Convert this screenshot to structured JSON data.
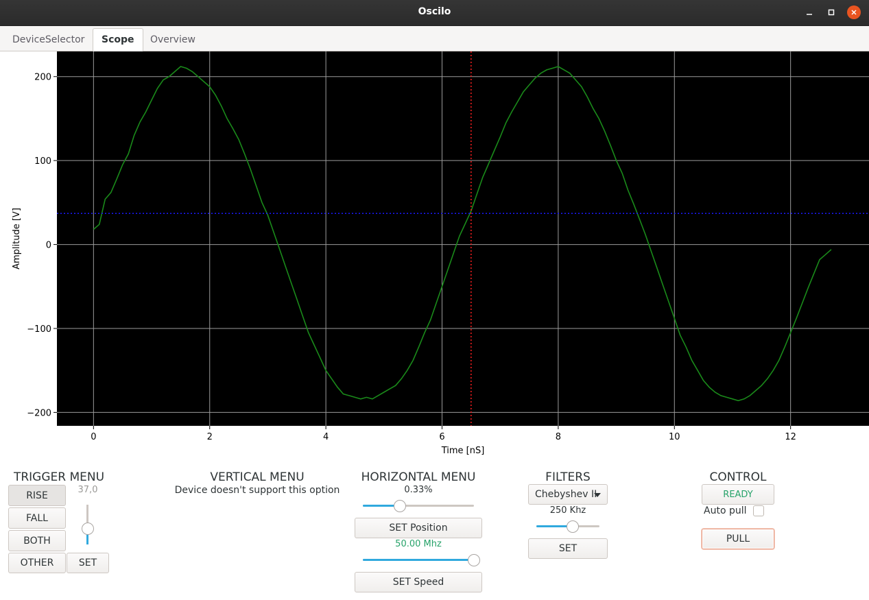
{
  "window": {
    "title": "Oscilo",
    "controls": {
      "minimize_icon": "minimize-icon",
      "maximize_icon": "maximize-icon",
      "close_icon": "close-icon"
    }
  },
  "tabs": [
    {
      "label": "DeviceSelector",
      "active": false
    },
    {
      "label": "Scope",
      "active": true
    },
    {
      "label": "Overview",
      "active": false
    }
  ],
  "chart_data": {
    "type": "line",
    "xlabel": "Time [nS]",
    "ylabel": "Amplitude [V]",
    "xlim": [
      -0.63,
      13.35
    ],
    "ylim": [
      -216,
      230
    ],
    "xticks": [
      0,
      2,
      4,
      6,
      8,
      10,
      12
    ],
    "yticks": [
      -200,
      -100,
      0,
      100,
      200
    ],
    "grid": true,
    "background": "#000000",
    "trigger_time": 6.5,
    "trigger_level": 37,
    "series": [
      {
        "color": "#1a8a1a",
        "x": [
          0.0,
          0.1,
          0.2,
          0.3,
          0.4,
          0.5,
          0.6,
          0.7,
          0.8,
          0.9,
          1.0,
          1.1,
          1.2,
          1.3,
          1.4,
          1.5,
          1.6,
          1.7,
          1.8,
          1.9,
          2.0,
          2.1,
          2.2,
          2.3,
          2.4,
          2.5,
          2.6,
          2.7,
          2.8,
          2.9,
          3.0,
          3.1,
          3.2,
          3.3,
          3.4,
          3.5,
          3.6,
          3.7,
          3.8,
          3.9,
          4.0,
          4.1,
          4.2,
          4.3,
          4.4,
          4.5,
          4.6,
          4.7,
          4.8,
          4.9,
          5.0,
          5.1,
          5.2,
          5.3,
          5.4,
          5.5,
          5.6,
          5.7,
          5.8,
          5.9,
          6.0,
          6.1,
          6.2,
          6.3,
          6.4,
          6.5,
          6.6,
          6.7,
          6.8,
          6.9,
          7.0,
          7.1,
          7.2,
          7.3,
          7.4,
          7.5,
          7.6,
          7.7,
          7.8,
          7.9,
          8.0,
          8.1,
          8.2,
          8.3,
          8.4,
          8.5,
          8.6,
          8.7,
          8.8,
          8.9,
          9.0,
          9.1,
          9.2,
          9.3,
          9.4,
          9.5,
          9.6,
          9.7,
          9.8,
          9.9,
          10.0,
          10.1,
          10.2,
          10.3,
          10.4,
          10.5,
          10.6,
          10.7,
          10.8,
          10.9,
          11.0,
          11.1,
          11.2,
          11.3,
          11.4,
          11.5,
          11.6,
          11.7,
          11.8,
          11.9,
          12.0,
          12.1,
          12.2,
          12.3,
          12.4,
          12.5,
          12.6,
          12.7
        ],
        "y": [
          18,
          24,
          54,
          62,
          78,
          95,
          108,
          130,
          146,
          158,
          172,
          186,
          196,
          200,
          206,
          212,
          210,
          206,
          200,
          194,
          188,
          178,
          165,
          150,
          138,
          125,
          108,
          90,
          70,
          50,
          35,
          15,
          -5,
          -25,
          -45,
          -65,
          -85,
          -105,
          -120,
          -135,
          -150,
          -160,
          -170,
          -178,
          -180,
          -182,
          -184,
          -182,
          -184,
          -180,
          -176,
          -172,
          -168,
          -160,
          -150,
          -138,
          -122,
          -105,
          -90,
          -70,
          -50,
          -30,
          -10,
          10,
          25,
          40,
          60,
          80,
          96,
          112,
          128,
          145,
          158,
          170,
          182,
          190,
          198,
          204,
          208,
          210,
          212,
          208,
          204,
          196,
          188,
          176,
          162,
          150,
          135,
          118,
          100,
          85,
          65,
          48,
          30,
          12,
          -8,
          -28,
          -48,
          -68,
          -88,
          -108,
          -122,
          -138,
          -150,
          -162,
          -170,
          -176,
          -180,
          -182,
          -184,
          -186,
          -184,
          -180,
          -174,
          -168,
          -160,
          -150,
          -138,
          -122,
          -105,
          -88,
          -70,
          -52,
          -35,
          -18,
          -12,
          -6
        ]
      }
    ]
  },
  "trigger_menu": {
    "title": "TRIGGER MENU",
    "buttons": {
      "rise": "RISE",
      "fall": "FALL",
      "both": "BOTH",
      "other": "OTHER",
      "set": "SET"
    },
    "level_value": "37,0",
    "level_fraction": 0.35
  },
  "vertical_menu": {
    "title": "VERTICAL MENU",
    "message": "Device doesn't support this option"
  },
  "horizontal_menu": {
    "title": "HORIZONTAL MENU",
    "position_value": "0.33%",
    "position_fraction": 0.31,
    "set_position_label": "SET Position",
    "speed_value": "50.00 Mhz",
    "speed_fraction": 1.0,
    "set_speed_label": "SET Speed",
    "speed_color": "#26a269"
  },
  "filters": {
    "title": "FILTERS",
    "filter_type": "Chebyshev II",
    "cutoff_value": "250 Khz",
    "cutoff_fraction": 0.6,
    "set_label": "SET"
  },
  "control": {
    "title": "CONTROL",
    "status": "READY",
    "status_color": "#26a269",
    "auto_pull_label": "Auto pull",
    "auto_pull_checked": false,
    "pull_label": "PULL"
  }
}
